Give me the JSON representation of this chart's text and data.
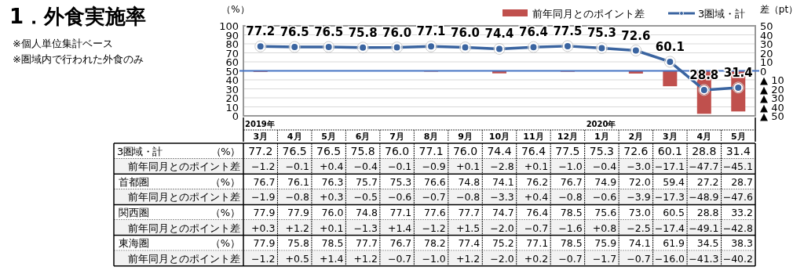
{
  "chart_data": [
    {
      "type": "line",
      "title": "1．外食実施率",
      "annotations": [
        "※個人単位集計ベース",
        "※圏域内で行われた外食のみ",
        "2019年",
        "2020年"
      ],
      "categories": [
        "3月",
        "4月",
        "5月",
        "6月",
        "7月",
        "8月",
        "9月",
        "10月",
        "11月",
        "12月",
        "1月",
        "2月",
        "3月",
        "4月",
        "5月"
      ],
      "series": [
        {
          "name": "前年同月とのポイント差",
          "type": "bar",
          "axis": "y2",
          "color": "#c0504d",
          "values": [
            -1.2,
            -0.1,
            0.4,
            -0.4,
            -0.1,
            -0.9,
            0.1,
            -2.8,
            0.1,
            -1.0,
            -0.4,
            -3.0,
            -17.1,
            -47.7,
            -45.1
          ],
          "value_labels": [
            "−1.2",
            "−0.1",
            "+0.4",
            "−0.4",
            "−0.1",
            "−0.9",
            "+0.1",
            "−2.8",
            "+0.1",
            "−1.0",
            "−0.4",
            "−3.0",
            "−17.1",
            "−47.7",
            "−45.1"
          ]
        },
        {
          "name": "3圏域・計",
          "type": "line",
          "color": "#3a64a0",
          "marker": "circle",
          "values": [
            77.2,
            76.5,
            76.5,
            75.8,
            76.0,
            77.1,
            76.0,
            74.4,
            76.4,
            77.5,
            75.3,
            72.6,
            60.1,
            28.8,
            31.4
          ],
          "value_labels": [
            "77.2",
            "76.5",
            "76.5",
            "75.8",
            "76.0",
            "77.1",
            "76.0",
            "74.4",
            "76.4",
            "77.5",
            "75.3",
            "72.6",
            "60.1",
            "28.8",
            "31.4"
          ]
        }
      ],
      "ylabel": "（%）",
      "y2label": "差（pt）",
      "ylim": [
        0,
        100
      ],
      "yticks": [
        0,
        10,
        20,
        30,
        40,
        50,
        60,
        70,
        80,
        90,
        100
      ],
      "y2lim": [
        -50,
        50
      ],
      "y2ticks": [
        {
          "value": -50,
          "label": "▲ 50"
        },
        {
          "value": -40,
          "label": "▲ 40"
        },
        {
          "value": -30,
          "label": "▲ 30"
        },
        {
          "value": -20,
          "label": "▲ 20"
        },
        {
          "value": -10,
          "label": "▲ 10"
        },
        0,
        10,
        20,
        30,
        40,
        50
      ],
      "ref_lines": [
        {
          "axis": "y2",
          "value": 0,
          "color": "#4472c4"
        }
      ],
      "grid": "y",
      "legend": "top right"
    },
    {
      "type": "heatmap",
      "tick_labels": "y",
      "categories": [
        "3月",
        "4月",
        "5月",
        "6月",
        "7月",
        "8月",
        "9月",
        "10月",
        "11月",
        "12月",
        "1月",
        "2月",
        "3月",
        "4月",
        "5月"
      ],
      "y_categories": [
        "首都圏　　　　　　（%）",
        "前年同月とのポイント差",
        "関西圏　　　　　　（%）",
        "前年同月とのポイント差",
        "東海圏　　　　　　（%）",
        "前年同月とのポイント差"
      ],
      "cells": [
        [
          76.7,
          76.1,
          76.3,
          75.7,
          75.3,
          76.6,
          74.8,
          74.1,
          76.2,
          76.7,
          74.9,
          72.0,
          59.4,
          27.2,
          28.7
        ],
        [
          -1.9,
          -0.8,
          0.3,
          -0.5,
          -0.6,
          -0.7,
          -0.8,
          -3.3,
          0.4,
          -0.8,
          -0.6,
          -3.9,
          -17.3,
          -48.9,
          -47.6
        ],
        [
          77.9,
          77.9,
          76.0,
          74.8,
          77.1,
          77.6,
          77.7,
          74.7,
          76.4,
          78.5,
          75.6,
          73.0,
          60.5,
          28.8,
          33.2
        ],
        [
          0.3,
          1.2,
          0.1,
          -1.3,
          1.4,
          -1.2,
          1.5,
          -2.0,
          -0.7,
          -1.6,
          0.8,
          -2.5,
          -17.4,
          -49.1,
          -42.8
        ],
        [
          77.9,
          75.8,
          78.5,
          77.7,
          76.7,
          78.2,
          77.4,
          75.2,
          77.1,
          78.5,
          75.9,
          74.1,
          61.9,
          34.5,
          38.3
        ],
        [
          -1.2,
          0.5,
          1.4,
          1.2,
          -0.7,
          -1.0,
          1.2,
          -2.0,
          0.2,
          -0.7,
          -1.7,
          -0.7,
          -16.0,
          -41.3,
          -40.2
        ]
      ],
      "cell_labels": [
        [
          "76.7",
          "76.1",
          "76.3",
          "75.7",
          "75.3",
          "76.6",
          "74.8",
          "74.1",
          "76.2",
          "76.7",
          "74.9",
          "72.0",
          "59.4",
          "27.2",
          "28.7"
        ],
        [
          "−1.9",
          "−0.8",
          "+0.3",
          "−0.5",
          "−0.6",
          "−0.7",
          "−0.8",
          "−3.3",
          "+0.4",
          "−0.8",
          "−0.6",
          "−3.9",
          "−17.3",
          "−48.9",
          "−47.6"
        ],
        [
          "77.9",
          "77.9",
          "76.0",
          "74.8",
          "77.1",
          "77.6",
          "77.7",
          "74.7",
          "76.4",
          "78.5",
          "75.6",
          "73.0",
          "60.5",
          "28.8",
          "33.2"
        ],
        [
          "+0.3",
          "+1.2",
          "+0.1",
          "−1.3",
          "+1.4",
          "−1.2",
          "+1.5",
          "−2.0",
          "−0.7",
          "−1.6",
          "+0.8",
          "−2.5",
          "−17.4",
          "−49.1",
          "−42.8"
        ],
        [
          "77.9",
          "75.8",
          "78.5",
          "77.7",
          "76.7",
          "78.2",
          "77.4",
          "75.2",
          "77.1",
          "78.5",
          "75.9",
          "74.1",
          "61.9",
          "34.5",
          "38.3"
        ],
        [
          "−1.2",
          "+0.5",
          "+1.4",
          "+1.2",
          "−0.7",
          "−1.0",
          "+1.2",
          "−2.0",
          "+0.2",
          "−0.7",
          "−1.7",
          "−0.7",
          "−16.0",
          "−41.3",
          "−40.2"
        ]
      ]
    }
  ]
}
